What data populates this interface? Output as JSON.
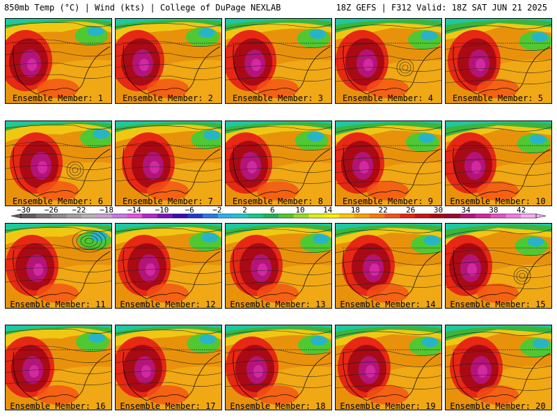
{
  "header": {
    "left": "850mb Temp (°C) | Wind (kts) | College of DuPage NEXLAB",
    "right": "18Z GEFS | F312 Valid: 18Z SAT JUN 21 2025"
  },
  "caption_prefix": "Ensemble Member:",
  "members": [
    "1",
    "2",
    "3",
    "4",
    "5",
    "6",
    "7",
    "8",
    "9",
    "10",
    "11",
    "12",
    "13",
    "14",
    "15",
    "16",
    "17",
    "18",
    "19",
    "20"
  ],
  "colorbar": {
    "labels": [
      "−30",
      "−26",
      "−22",
      "−18",
      "−14",
      "−10",
      "−6",
      "−2",
      "2",
      "6",
      "10",
      "14",
      "18",
      "22",
      "26",
      "30",
      "34",
      "38",
      "42"
    ],
    "colors": [
      "#5e5e5e",
      "#787878",
      "#8c8c8c",
      "#a0a0a0",
      "#b4b4b4",
      "#c8a0d2",
      "#c878e6",
      "#e650e6",
      "#b428d2",
      "#7814be",
      "#3c0ab4",
      "#1e3cd2",
      "#2878e6",
      "#28b4f0",
      "#1ec8c8",
      "#14c88c",
      "#1eb450",
      "#50c832",
      "#96dc28",
      "#dcf014",
      "#fff000",
      "#ffc800",
      "#ffa000",
      "#ff7800",
      "#f55014",
      "#e62814",
      "#c81414",
      "#aa0a14",
      "#960a32",
      "#b41478",
      "#d228a0",
      "#e650c8",
      "#f07ae6",
      "#f5aaf0"
    ]
  }
}
